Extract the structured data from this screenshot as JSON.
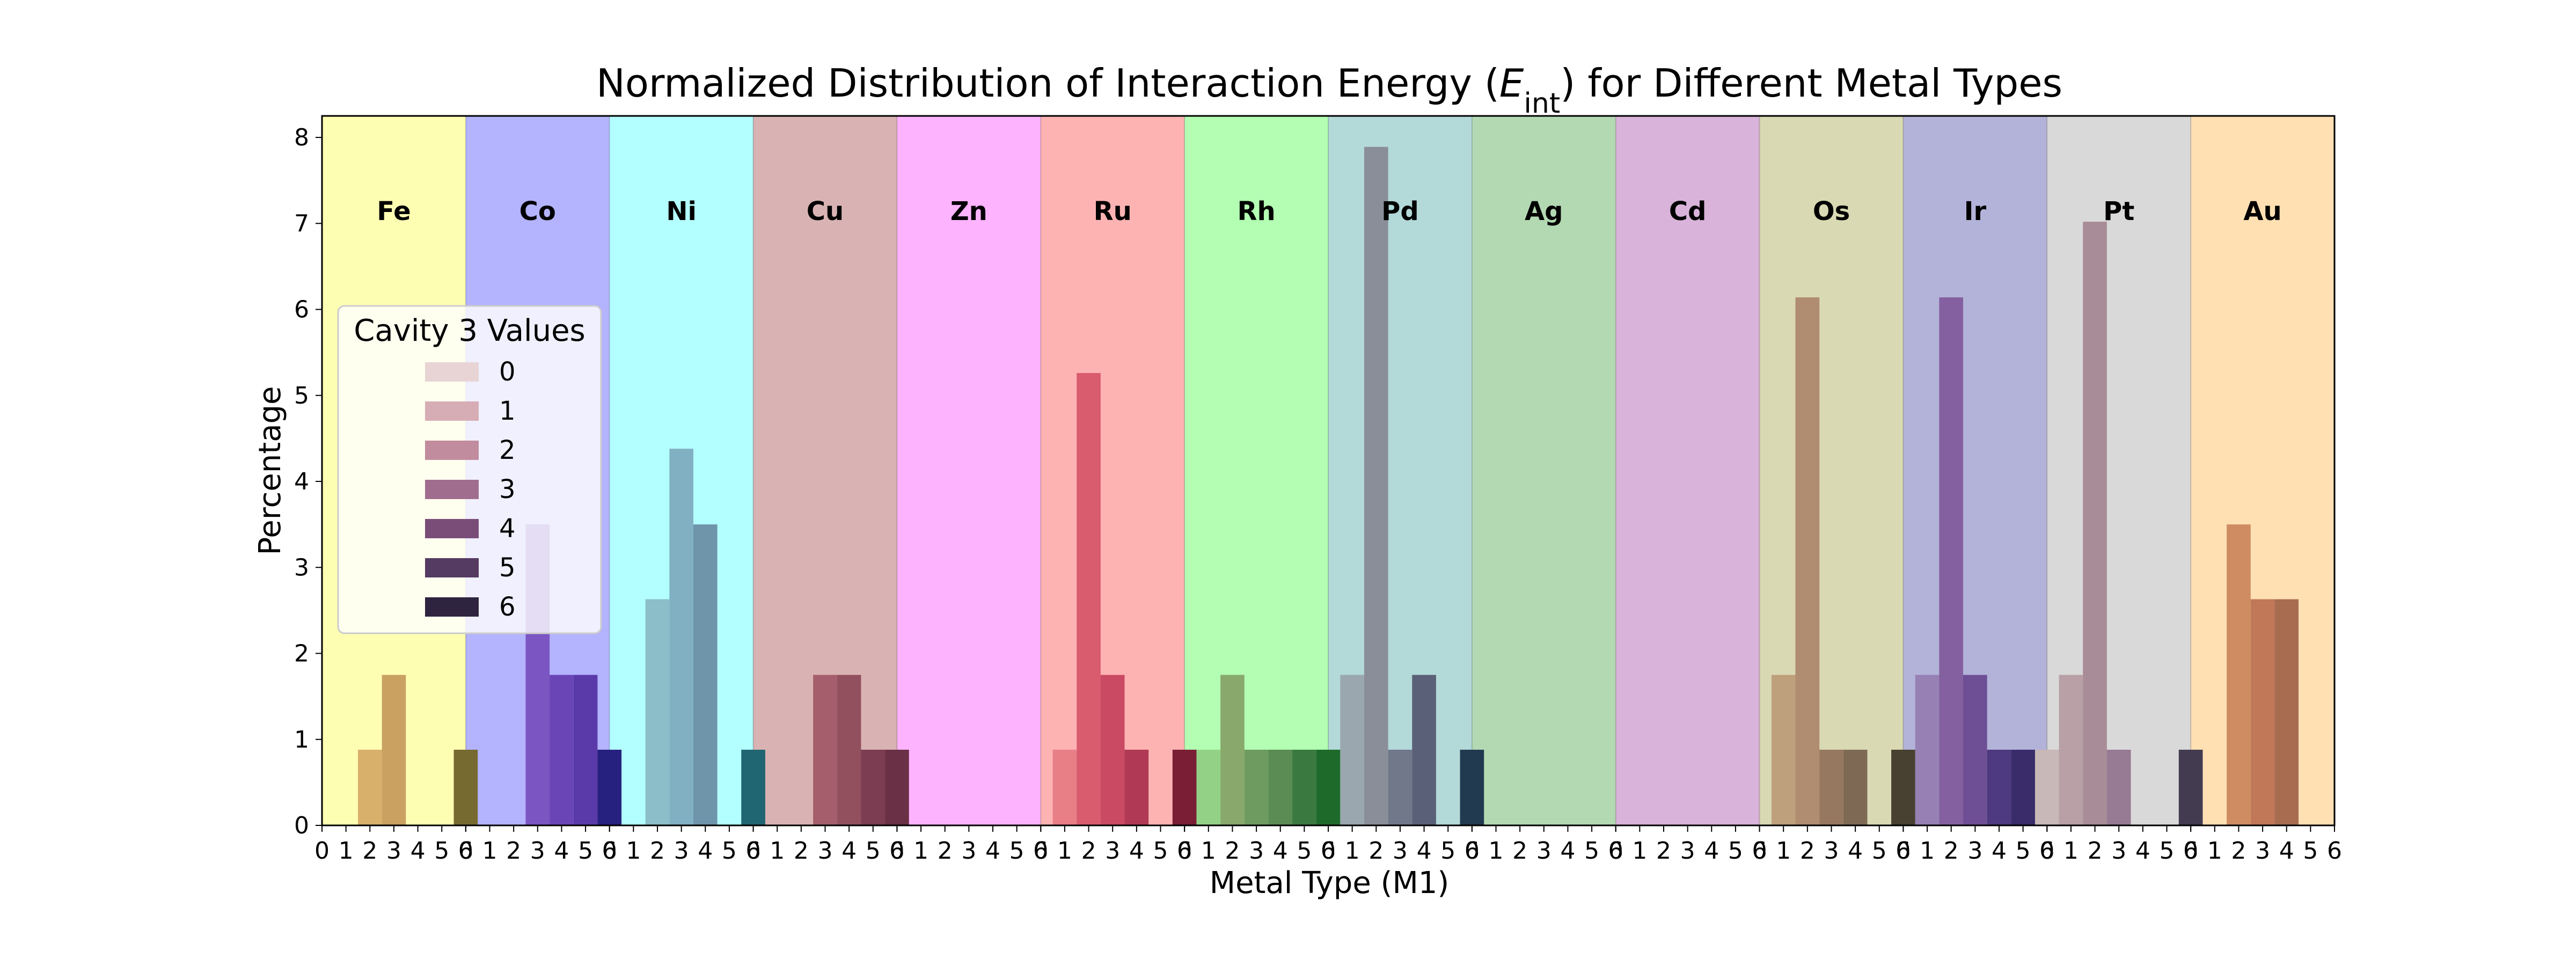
{
  "chart_data": {
    "type": "bar",
    "title_prefix": "Normalized Distribution of Interaction Energy (",
    "title_symbol": "E",
    "title_subscript": "int",
    "title_suffix": ") for Different Metal Types",
    "xlabel": "Metal Type (M1)",
    "ylabel": "Percentage",
    "ylim": [
      0,
      8.25
    ],
    "yticks": [
      0,
      1,
      2,
      3,
      4,
      5,
      6,
      7,
      8
    ],
    "xticks_per_group": [
      0,
      1,
      2,
      3,
      4,
      5,
      6
    ],
    "grid": false,
    "legend": {
      "title": "Cavity 3 Values",
      "placement": "center-left",
      "entries": [
        "0",
        "1",
        "2",
        "3",
        "4",
        "5",
        "6"
      ],
      "colors": [
        "#e8d4d4",
        "#d7adb5",
        "#c18c9d",
        "#a06d8f",
        "#7a4d79",
        "#553a62",
        "#2f2440"
      ]
    },
    "groups": [
      {
        "metal": "Fe",
        "bg": "#fefeb3",
        "values": [
          0,
          0,
          0.88,
          1.75,
          0,
          0,
          0.88
        ],
        "colors": [
          "#e8c788",
          "#e0bb79",
          "#d9b06b",
          "#caa160",
          "#9a8a50",
          "#8a7d44",
          "#776a30"
        ]
      },
      {
        "metal": "Co",
        "bg": "#b3b3fe",
        "values": [
          0,
          0,
          0,
          3.5,
          1.75,
          1.75,
          0.88
        ],
        "colors": [
          "#8f7ad9",
          "#8a70cf",
          "#8160c8",
          "#7b55c2",
          "#6a45b5",
          "#5a3aa8",
          "#26207f"
        ]
      },
      {
        "metal": "Ni",
        "bg": "#b3fefe",
        "values": [
          0,
          0,
          2.63,
          4.38,
          3.5,
          0,
          0.88
        ],
        "colors": [
          "#9fd3d8",
          "#95c9d0",
          "#8bbec8",
          "#81b0c3",
          "#6f95ab",
          "#4b7a88",
          "#206672"
        ]
      },
      {
        "metal": "Cu",
        "bg": "#d9b3b3",
        "values": [
          0,
          0,
          0,
          1.75,
          1.75,
          0.88,
          0.88
        ],
        "colors": [
          "#c99292",
          "#c28484",
          "#b77070",
          "#a55e6b",
          "#92505f",
          "#7c3c52",
          "#6a3046"
        ]
      },
      {
        "metal": "Zn",
        "bg": "#feb3fe",
        "values": [
          0,
          0,
          0,
          0,
          0,
          0,
          0
        ],
        "colors": [
          "#e08ae0",
          "#d67ad6",
          "#cc6acc",
          "#c05ac0",
          "#b04ab0",
          "#a03aa0",
          "#903090"
        ]
      },
      {
        "metal": "Ru",
        "bg": "#feb3b3",
        "values": [
          0,
          0.88,
          5.26,
          1.75,
          0.88,
          0,
          0.88
        ],
        "colors": [
          "#ea8a8a",
          "#e87e86",
          "#d95c6e",
          "#c94a62",
          "#b03a56",
          "#92304a",
          "#7a1e36"
        ]
      },
      {
        "metal": "Rh",
        "bg": "#b3feb3",
        "values": [
          0,
          0.88,
          1.75,
          0.88,
          0.88,
          0.88,
          0.88
        ],
        "colors": [
          "#9ed88e",
          "#93d286",
          "#88a86c",
          "#6e9c60",
          "#5a8c54",
          "#3a7a40",
          "#1e6a2a"
        ]
      },
      {
        "metal": "Pd",
        "bg": "#b3d9d9",
        "values": [
          0,
          1.75,
          7.89,
          0.88,
          1.75,
          0,
          0.88
        ],
        "colors": [
          "#a6b7be",
          "#9aa7ae",
          "#8a8e98",
          "#70788a",
          "#5a6078",
          "#3a4a60",
          "#223a50"
        ]
      },
      {
        "metal": "Ag",
        "bg": "#b3d9b3",
        "values": [
          0,
          0,
          0,
          0,
          0,
          0,
          0
        ],
        "colors": [
          "#90c090",
          "#80b080",
          "#70a070",
          "#609060",
          "#508050",
          "#407040",
          "#306030"
        ]
      },
      {
        "metal": "Cd",
        "bg": "#d9b3d9",
        "values": [
          0,
          0,
          0,
          0,
          0,
          0,
          0
        ],
        "colors": [
          "#c090c0",
          "#b080b0",
          "#a070a0",
          "#906090",
          "#805080",
          "#704070",
          "#603060"
        ]
      },
      {
        "metal": "Os",
        "bg": "#d9d9b3",
        "values": [
          0,
          1.75,
          6.14,
          0.88,
          0.88,
          0,
          0.88
        ],
        "colors": [
          "#c8b48c",
          "#bfa07c",
          "#b08c70",
          "#967860",
          "#7e6a54",
          "#5a5040",
          "#484030"
        ]
      },
      {
        "metal": "Ir",
        "bg": "#b3b3d9",
        "values": [
          0,
          1.75,
          6.14,
          1.75,
          0.88,
          0.88,
          0.88
        ],
        "colors": [
          "#9e84b8",
          "#9680b4",
          "#8460a0",
          "#6e4e94",
          "#4e3a80",
          "#3a2c6a",
          "#241e52"
        ]
      },
      {
        "metal": "Pt",
        "bg": "#d9d9d9",
        "values": [
          0.88,
          1.75,
          7.02,
          0.88,
          0,
          0,
          0.88
        ],
        "colors": [
          "#c8b8b8",
          "#b8a0a6",
          "#a88c98",
          "#977a93",
          "#7a6480",
          "#5e5068",
          "#433c50"
        ]
      },
      {
        "metal": "Au",
        "bg": "#fee0b3",
        "values": [
          0,
          0,
          3.5,
          2.63,
          2.63,
          0,
          0
        ],
        "colors": [
          "#e0a070",
          "#d8946a",
          "#cf8c62",
          "#c07858",
          "#a86c50",
          "#906048",
          "#785040"
        ]
      }
    ]
  }
}
